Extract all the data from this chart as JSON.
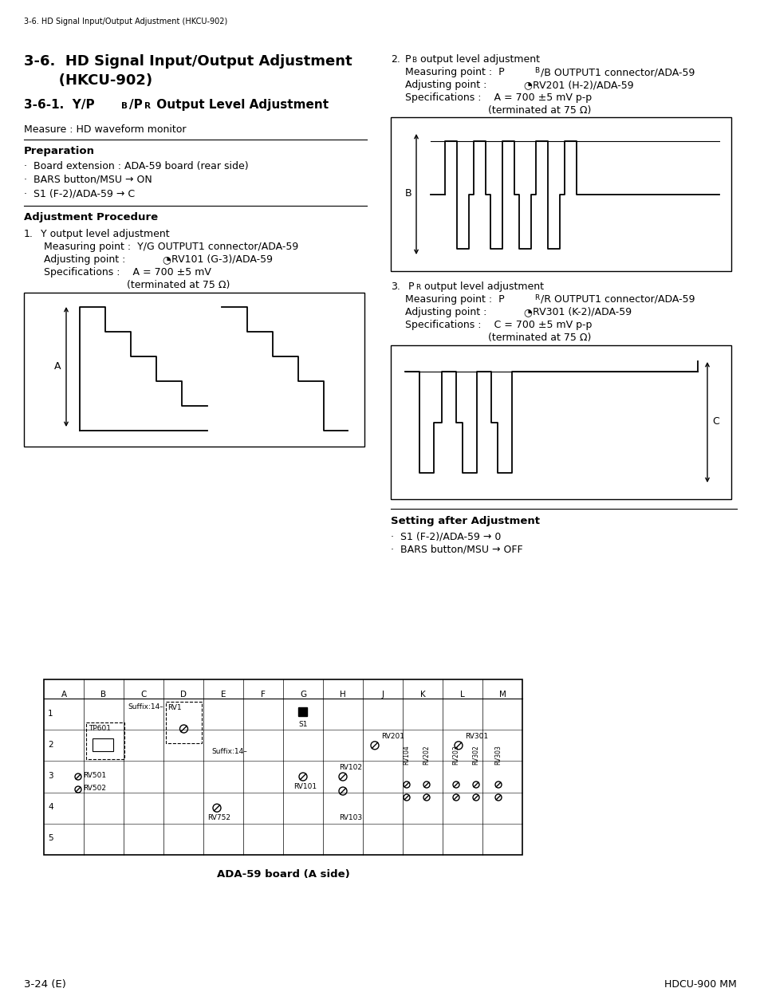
{
  "page_header": "3-6. HD Signal Input/Output Adjustment (HKCU-902)",
  "title_line1": "3-6.  HD Signal Input/Output Adjustment",
  "title_line2": "       (HKCU-902)",
  "subtitle_pre": "3-6-1.  Y/P",
  "subtitle_mid": "/P",
  "subtitle_post": " Output Level Adjustment",
  "sub_B": "B",
  "sub_R": "R",
  "measure_text": "Measure : HD waveform monitor",
  "prep_title": "Preparation",
  "prep_items": [
    "·  Board extension : ADA-59 board (rear side)",
    "·  BARS button/MSU → ON",
    "·  S1 (F-2)/ADA-59 → C"
  ],
  "adj_title": "Adjustment Procedure",
  "item1_num": "1.",
  "item1_title": "  Y output level adjustment",
  "item1_mp": "Measuring point :  Y/G OUTPUT1 connector/ADA-59",
  "item1_ap_pre": "Adjusting point :  ",
  "item1_ap_sym": "◔",
  "item1_ap_post": "RV101 (G-3)/ADA-59",
  "item1_sp1": "Specifications :    A = 700 ±5 mV",
  "item1_sp2": "                          (terminated at 75 Ω)",
  "item2_num": "2.",
  "item2_title_pre": " P",
  "item2_title_sub": "B",
  "item2_title_post": " output level adjustment",
  "item2_mp_pre": "Measuring point :  P",
  "item2_mp_sub": "B",
  "item2_mp_post": "/B OUTPUT1 connector/ADA-59",
  "item2_ap_pre": "Adjusting point :  ",
  "item2_ap_sym": "◔",
  "item2_ap_post": "RV201 (H-2)/ADA-59",
  "item2_sp1": "Specifications :    A = 700 ±5 mV p-p",
  "item2_sp2": "                          (terminated at 75 Ω)",
  "item3_num": "3.",
  "item3_title_pre": "  P",
  "item3_title_sub": "R",
  "item3_title_post": " output level adjustment",
  "item3_mp_pre": "Measuring point :  P",
  "item3_mp_sub": "R",
  "item3_mp_post": "/R OUTPUT1 connector/ADA-59",
  "item3_ap_pre": "Adjusting point :  ",
  "item3_ap_sym": "◔",
  "item3_ap_post": "RV301 (K-2)/ADA-59",
  "item3_sp1": "Specifications :    C = 700 ±5 mV p-p",
  "item3_sp2": "                          (terminated at 75 Ω)",
  "setting_title": "Setting after Adjustment",
  "setting_items": [
    "·  S1 (F-2)/ADA-59 → 0",
    "·  BARS button/MSU → OFF"
  ],
  "board_title": "ADA-59 board (A side)",
  "footer_left": "3-24 (E)",
  "footer_right": "HDCU-900 MM",
  "bg": "#ffffff"
}
